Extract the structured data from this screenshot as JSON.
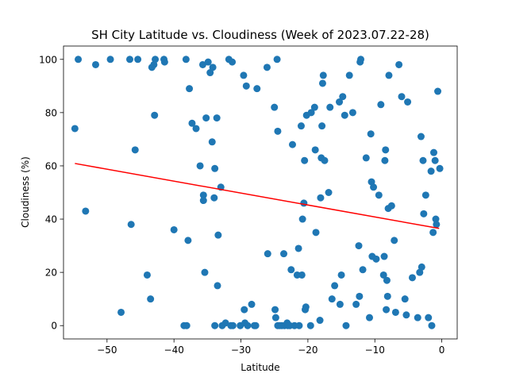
{
  "chart_data": {
    "type": "scatter",
    "title": "SH City Latitude vs. Cloudiness (Week of 2023.07.22-28)",
    "xlabel": "Latitude",
    "ylabel": "Cloudiness (%)",
    "xlim": [
      -56.5,
      2.3
    ],
    "ylim": [
      -5,
      105
    ],
    "xticks": [
      -50,
      -40,
      -30,
      -20,
      -10,
      0
    ],
    "xtick_labels": [
      "−50",
      "−40",
      "−30",
      "−20",
      "−10",
      "0"
    ],
    "yticks": [
      0,
      20,
      40,
      60,
      80,
      100
    ],
    "ytick_labels": [
      "0",
      "20",
      "40",
      "60",
      "80",
      "100"
    ],
    "grid": false,
    "point_color": "#1f77b4",
    "regression_color": "#ff0000",
    "regression": {
      "x": [
        -54.8,
        -0.4
      ],
      "y": [
        60.9,
        36.5
      ]
    },
    "points": [
      [
        -54.8,
        74
      ],
      [
        -54.3,
        100
      ],
      [
        -53.2,
        43
      ],
      [
        -51.7,
        98
      ],
      [
        -49.5,
        100
      ],
      [
        -47.9,
        5
      ],
      [
        -46.6,
        100
      ],
      [
        -46.4,
        38
      ],
      [
        -45.8,
        66
      ],
      [
        -45.4,
        100
      ],
      [
        -44.0,
        19
      ],
      [
        -43.5,
        10
      ],
      [
        -43.3,
        97
      ],
      [
        -43.0,
        98
      ],
      [
        -42.9,
        79
      ],
      [
        -42.8,
        100
      ],
      [
        -41.5,
        100
      ],
      [
        -41.4,
        99
      ],
      [
        -40.0,
        36
      ],
      [
        -38.5,
        0
      ],
      [
        -38.2,
        100
      ],
      [
        -38.1,
        0
      ],
      [
        -37.9,
        32
      ],
      [
        -37.7,
        89
      ],
      [
        -37.3,
        76
      ],
      [
        -36.7,
        74
      ],
      [
        -36.1,
        60
      ],
      [
        -35.7,
        98
      ],
      [
        -35.6,
        49
      ],
      [
        -35.6,
        47
      ],
      [
        -35.4,
        20
      ],
      [
        -35.2,
        78
      ],
      [
        -34.9,
        99
      ],
      [
        -34.6,
        95
      ],
      [
        -34.3,
        69
      ],
      [
        -34.2,
        97
      ],
      [
        -34.0,
        48
      ],
      [
        -33.9,
        59
      ],
      [
        -33.9,
        0
      ],
      [
        -33.6,
        78
      ],
      [
        -33.5,
        15
      ],
      [
        -33.4,
        34
      ],
      [
        -33.0,
        52
      ],
      [
        -32.8,
        0
      ],
      [
        -32.3,
        1
      ],
      [
        -31.8,
        100
      ],
      [
        -31.5,
        0
      ],
      [
        -31.3,
        99
      ],
      [
        -31.2,
        0
      ],
      [
        -30.1,
        0
      ],
      [
        -29.6,
        94
      ],
      [
        -29.5,
        6
      ],
      [
        -29.4,
        1
      ],
      [
        -29.2,
        90
      ],
      [
        -29.0,
        0
      ],
      [
        -28.4,
        8
      ],
      [
        -28.0,
        0
      ],
      [
        -27.8,
        0
      ],
      [
        -27.6,
        89
      ],
      [
        -26.1,
        97
      ],
      [
        -26.0,
        27
      ],
      [
        -25.0,
        82
      ],
      [
        -24.9,
        6
      ],
      [
        -24.8,
        3
      ],
      [
        -24.6,
        100
      ],
      [
        -24.5,
        73
      ],
      [
        -24.5,
        0
      ],
      [
        -24.2,
        0
      ],
      [
        -23.9,
        0
      ],
      [
        -23.6,
        27
      ],
      [
        -23.5,
        0
      ],
      [
        -23.1,
        1
      ],
      [
        -23.0,
        0
      ],
      [
        -22.7,
        0
      ],
      [
        -22.5,
        21
      ],
      [
        -22.3,
        68
      ],
      [
        -22.0,
        0
      ],
      [
        -21.6,
        19
      ],
      [
        -21.4,
        29
      ],
      [
        -21.3,
        0
      ],
      [
        -21.0,
        75
      ],
      [
        -20.9,
        19
      ],
      [
        -20.8,
        40
      ],
      [
        -20.6,
        46
      ],
      [
        -20.5,
        62
      ],
      [
        -20.4,
        6
      ],
      [
        -20.3,
        7
      ],
      [
        -20.2,
        79
      ],
      [
        -19.6,
        0
      ],
      [
        -19.5,
        80
      ],
      [
        -19.0,
        82
      ],
      [
        -18.9,
        66
      ],
      [
        -18.8,
        35
      ],
      [
        -18.2,
        2
      ],
      [
        -18.1,
        48
      ],
      [
        -18.0,
        63
      ],
      [
        -17.9,
        75
      ],
      [
        -17.8,
        91
      ],
      [
        -17.7,
        94
      ],
      [
        -17.5,
        62
      ],
      [
        -16.9,
        50
      ],
      [
        -16.7,
        82
      ],
      [
        -16.4,
        10
      ],
      [
        -16.0,
        15
      ],
      [
        -15.3,
        84
      ],
      [
        -15.2,
        8
      ],
      [
        -15.0,
        19
      ],
      [
        -14.8,
        86
      ],
      [
        -14.5,
        79
      ],
      [
        -14.3,
        0
      ],
      [
        -13.8,
        94
      ],
      [
        -13.3,
        80
      ],
      [
        -12.8,
        8
      ],
      [
        -12.4,
        30
      ],
      [
        -12.3,
        11
      ],
      [
        -12.2,
        99
      ],
      [
        -12.1,
        100
      ],
      [
        -11.8,
        21
      ],
      [
        -11.3,
        63
      ],
      [
        -10.8,
        3
      ],
      [
        -10.6,
        72
      ],
      [
        -10.5,
        54
      ],
      [
        -10.4,
        26
      ],
      [
        -10.2,
        52
      ],
      [
        -9.8,
        25
      ],
      [
        -9.4,
        49
      ],
      [
        -9.1,
        83
      ],
      [
        -8.7,
        19
      ],
      [
        -8.6,
        26
      ],
      [
        -8.5,
        62
      ],
      [
        -8.4,
        66
      ],
      [
        -8.3,
        6
      ],
      [
        -8.2,
        17
      ],
      [
        -8.1,
        11
      ],
      [
        -8.0,
        44
      ],
      [
        -7.9,
        94
      ],
      [
        -7.5,
        45
      ],
      [
        -7.1,
        32
      ],
      [
        -6.9,
        5
      ],
      [
        -6.4,
        98
      ],
      [
        -6.0,
        86
      ],
      [
        -5.5,
        10
      ],
      [
        -5.3,
        4
      ],
      [
        -5.1,
        84
      ],
      [
        -4.4,
        18
      ],
      [
        -3.6,
        3
      ],
      [
        -3.3,
        20
      ],
      [
        -3.1,
        71
      ],
      [
        -3.0,
        22
      ],
      [
        -2.8,
        62
      ],
      [
        -2.7,
        42
      ],
      [
        -2.4,
        49
      ],
      [
        -2.0,
        3
      ],
      [
        -1.6,
        58
      ],
      [
        -1.5,
        0
      ],
      [
        -1.3,
        35
      ],
      [
        -1.2,
        65
      ],
      [
        -1.0,
        62
      ],
      [
        -0.9,
        40
      ],
      [
        -0.8,
        38
      ],
      [
        -0.6,
        88
      ],
      [
        -0.3,
        59
      ]
    ]
  }
}
